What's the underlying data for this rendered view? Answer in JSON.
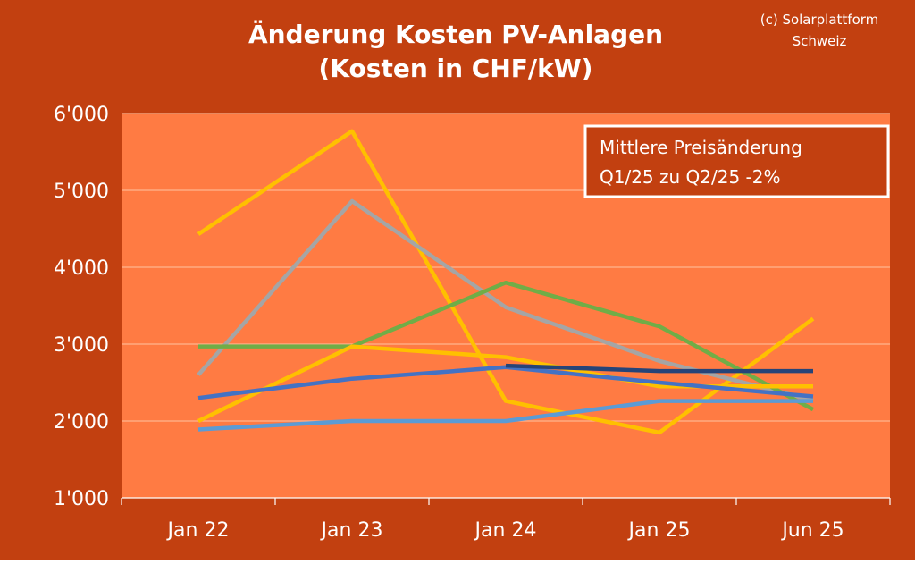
{
  "chart_data": {
    "type": "line",
    "title": "Änderung Kosten PV-Anlagen",
    "subtitle": "(Kosten in CHF/kW)",
    "copyright": [
      "(c) Solarplattform",
      "Schweiz"
    ],
    "annotation": [
      "Mittlere Preisänderung",
      "Q1/25 zu Q2/25  -2%"
    ],
    "categories": [
      "Jan 22",
      "Jan 23",
      "Jan 24",
      "Jan 25",
      "Jun 25"
    ],
    "ylim": [
      1000,
      6000
    ],
    "yticks": [
      1000,
      2000,
      3000,
      4000,
      5000,
      6000
    ],
    "ytick_labels": [
      "1'000",
      "2'000",
      "3'000",
      "4'000",
      "5'000",
      "6'000"
    ],
    "grid": true,
    "colors": {
      "background": "#c24010",
      "plot_area": "#ff7b43",
      "grid": "#ffb58f"
    },
    "series": [
      {
        "color": "#ffc000",
        "values": [
          4430,
          5770,
          2260,
          1850,
          3330
        ]
      },
      {
        "color": "#a5a5a5",
        "values": [
          2600,
          4860,
          3480,
          2780,
          2270
        ]
      },
      {
        "color": "#70ad47",
        "values": [
          2970,
          2970,
          3800,
          3230,
          2150
        ]
      },
      {
        "color": "#ffc000",
        "values": [
          2000,
          2970,
          2830,
          2450,
          2450
        ]
      },
      {
        "color": "#4472c4",
        "values": [
          2300,
          2550,
          2700,
          2500,
          2320
        ]
      },
      {
        "color": "#264478",
        "values": [
          null,
          null,
          2720,
          2650,
          2650
        ]
      },
      {
        "color": "#5b9bd5",
        "values": [
          1890,
          2000,
          2000,
          2260,
          2260
        ]
      }
    ]
  }
}
